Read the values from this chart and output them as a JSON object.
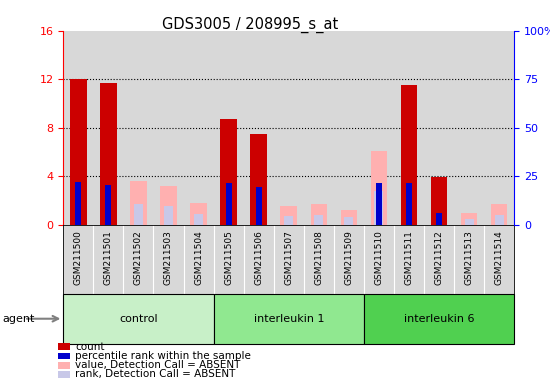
{
  "title": "GDS3005 / 208995_s_at",
  "samples": [
    "GSM211500",
    "GSM211501",
    "GSM211502",
    "GSM211503",
    "GSM211504",
    "GSM211505",
    "GSM211506",
    "GSM211507",
    "GSM211508",
    "GSM211509",
    "GSM211510",
    "GSM211511",
    "GSM211512",
    "GSM211513",
    "GSM211514"
  ],
  "count_values": [
    12.05,
    11.7,
    0,
    0,
    0,
    8.7,
    7.5,
    0,
    0,
    0,
    0,
    11.5,
    3.9,
    0,
    0
  ],
  "percentile_values": [
    3.5,
    3.3,
    0,
    0,
    0,
    3.4,
    3.1,
    0,
    0,
    0,
    3.4,
    3.4,
    1.0,
    0,
    0
  ],
  "absent_value_values": [
    0,
    0,
    3.6,
    3.2,
    1.8,
    0,
    0,
    1.5,
    1.7,
    1.2,
    6.1,
    0,
    0,
    1.0,
    1.7
  ],
  "absent_rank_values": [
    0,
    0,
    1.7,
    1.5,
    0.85,
    0,
    0,
    0.7,
    0.8,
    0.6,
    2.8,
    0,
    0,
    0.5,
    0.8
  ],
  "groups": [
    {
      "label": "control",
      "start": 0,
      "end": 5,
      "color": "#c8f0c8"
    },
    {
      "label": "interleukin 1",
      "start": 5,
      "end": 10,
      "color": "#90e890"
    },
    {
      "label": "interleukin 6",
      "start": 10,
      "end": 15,
      "color": "#50d050"
    }
  ],
  "ylim_left": [
    0,
    16
  ],
  "ylim_right": [
    0,
    100
  ],
  "yticks_left": [
    0,
    4,
    8,
    12,
    16
  ],
  "ytick_labels_left": [
    "0",
    "4",
    "8",
    "12",
    "16"
  ],
  "yticks_right": [
    0,
    25,
    50,
    75,
    100
  ],
  "ytick_labels_right": [
    "0",
    "25",
    "50",
    "75",
    "100%"
  ],
  "color_count": "#cc0000",
  "color_percentile": "#0000cc",
  "color_absent_value": "#ffb0b0",
  "color_absent_rank": "#c8c8e8",
  "bar_width": 0.55,
  "col_bg_color": "#d8d8d8",
  "plot_bg_color": "#ffffff",
  "agent_label": "agent",
  "legend_items": [
    {
      "color": "#cc0000",
      "label": "count"
    },
    {
      "color": "#0000cc",
      "label": "percentile rank within the sample"
    },
    {
      "color": "#ffb0b0",
      "label": "value, Detection Call = ABSENT"
    },
    {
      "color": "#c8c8e8",
      "label": "rank, Detection Call = ABSENT"
    }
  ]
}
